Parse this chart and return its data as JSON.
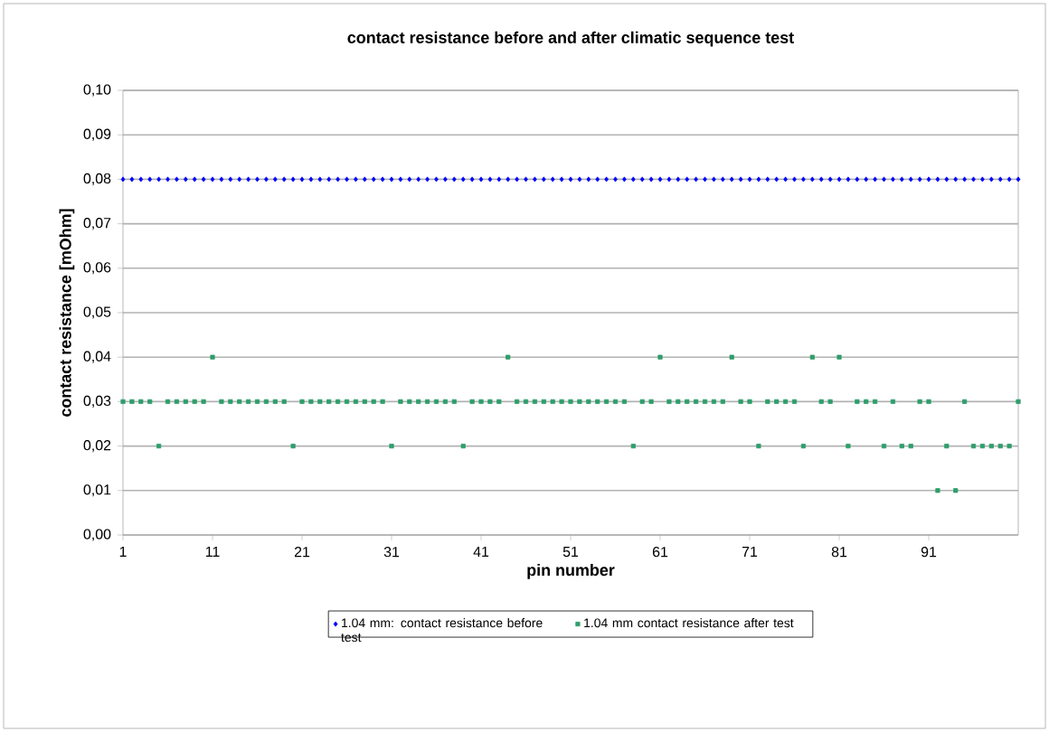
{
  "chart_data": {
    "type": "scatter",
    "title": "contact resistance before and after climatic sequence test",
    "xlabel": "pin number",
    "ylabel": "contact resistance [mOhm]",
    "x": [
      1,
      2,
      3,
      4,
      5,
      6,
      7,
      8,
      9,
      10,
      11,
      12,
      13,
      14,
      15,
      16,
      17,
      18,
      19,
      20,
      21,
      22,
      23,
      24,
      25,
      26,
      27,
      28,
      29,
      30,
      31,
      32,
      33,
      34,
      35,
      36,
      37,
      38,
      39,
      40,
      41,
      42,
      43,
      44,
      45,
      46,
      47,
      48,
      49,
      50,
      51,
      52,
      53,
      54,
      55,
      56,
      57,
      58,
      59,
      60,
      61,
      62,
      63,
      64,
      65,
      66,
      67,
      68,
      69,
      70,
      71,
      72,
      73,
      74,
      75,
      76,
      77,
      78,
      79,
      80,
      81,
      82,
      83,
      84,
      85,
      86,
      87,
      88,
      89,
      90,
      91,
      92,
      93,
      94,
      95,
      96,
      97,
      98,
      99,
      100,
      101
    ],
    "series": [
      {
        "name": "1.04 mm: contact resistance before test",
        "color": "#0000ff",
        "marker": "diamond",
        "values": [
          0.08,
          0.08,
          0.08,
          0.08,
          0.08,
          0.08,
          0.08,
          0.08,
          0.08,
          0.08,
          0.08,
          0.08,
          0.08,
          0.08,
          0.08,
          0.08,
          0.08,
          0.08,
          0.08,
          0.08,
          0.08,
          0.08,
          0.08,
          0.08,
          0.08,
          0.08,
          0.08,
          0.08,
          0.08,
          0.08,
          0.08,
          0.08,
          0.08,
          0.08,
          0.08,
          0.08,
          0.08,
          0.08,
          0.08,
          0.08,
          0.08,
          0.08,
          0.08,
          0.08,
          0.08,
          0.08,
          0.08,
          0.08,
          0.08,
          0.08,
          0.08,
          0.08,
          0.08,
          0.08,
          0.08,
          0.08,
          0.08,
          0.08,
          0.08,
          0.08,
          0.08,
          0.08,
          0.08,
          0.08,
          0.08,
          0.08,
          0.08,
          0.08,
          0.08,
          0.08,
          0.08,
          0.08,
          0.08,
          0.08,
          0.08,
          0.08,
          0.08,
          0.08,
          0.08,
          0.08,
          0.08,
          0.08,
          0.08,
          0.08,
          0.08,
          0.08,
          0.08,
          0.08,
          0.08,
          0.08,
          0.08,
          0.08,
          0.08,
          0.08,
          0.08,
          0.08,
          0.08,
          0.08,
          0.08,
          0.08,
          0.08
        ]
      },
      {
        "name": "1.04 mm contact resistance after test",
        "color": "#2e9e6b",
        "marker": "square",
        "values": [
          0.03,
          0.03,
          0.03,
          0.03,
          0.02,
          0.03,
          0.03,
          0.03,
          0.03,
          0.03,
          0.04,
          0.03,
          0.03,
          0.03,
          0.03,
          0.03,
          0.03,
          0.03,
          0.03,
          0.02,
          0.03,
          0.03,
          0.03,
          0.03,
          0.03,
          0.03,
          0.03,
          0.03,
          0.03,
          0.03,
          0.02,
          0.03,
          0.03,
          0.03,
          0.03,
          0.03,
          0.03,
          0.03,
          0.02,
          0.03,
          0.03,
          0.03,
          0.03,
          0.04,
          0.03,
          0.03,
          0.03,
          0.03,
          0.03,
          0.03,
          0.03,
          0.03,
          0.03,
          0.03,
          0.03,
          0.03,
          0.03,
          0.02,
          0.03,
          0.03,
          0.04,
          0.03,
          0.03,
          0.03,
          0.03,
          0.03,
          0.03,
          0.03,
          0.04,
          0.03,
          0.03,
          0.02,
          0.03,
          0.03,
          0.03,
          0.03,
          0.02,
          0.04,
          0.03,
          0.03,
          0.04,
          0.02,
          0.03,
          0.03,
          0.03,
          0.02,
          0.03,
          0.02,
          0.02,
          0.03,
          0.03,
          0.01,
          0.02,
          0.01,
          0.03,
          0.02,
          0.02,
          0.02,
          0.02,
          0.02,
          0.03
        ]
      }
    ],
    "xlim": [
      1,
      101
    ],
    "xticks": [
      1,
      11,
      21,
      31,
      41,
      51,
      61,
      71,
      81,
      91
    ],
    "ylim": [
      0,
      0.1
    ],
    "yticks": [
      {
        "value": 0,
        "label": "0,00"
      },
      {
        "value": 0.01,
        "label": "0,01"
      },
      {
        "value": 0.02,
        "label": "0,02"
      },
      {
        "value": 0.03,
        "label": "0,03"
      },
      {
        "value": 0.04,
        "label": "0,04"
      },
      {
        "value": 0.05,
        "label": "0,05"
      },
      {
        "value": 0.06,
        "label": "0,06"
      },
      {
        "value": 0.07,
        "label": "0,07"
      },
      {
        "value": 0.08,
        "label": "0,08"
      },
      {
        "value": 0.09,
        "label": "0,09"
      },
      {
        "value": 0.1,
        "label": "0,10"
      }
    ],
    "grid": "y",
    "legend": "bottom"
  }
}
